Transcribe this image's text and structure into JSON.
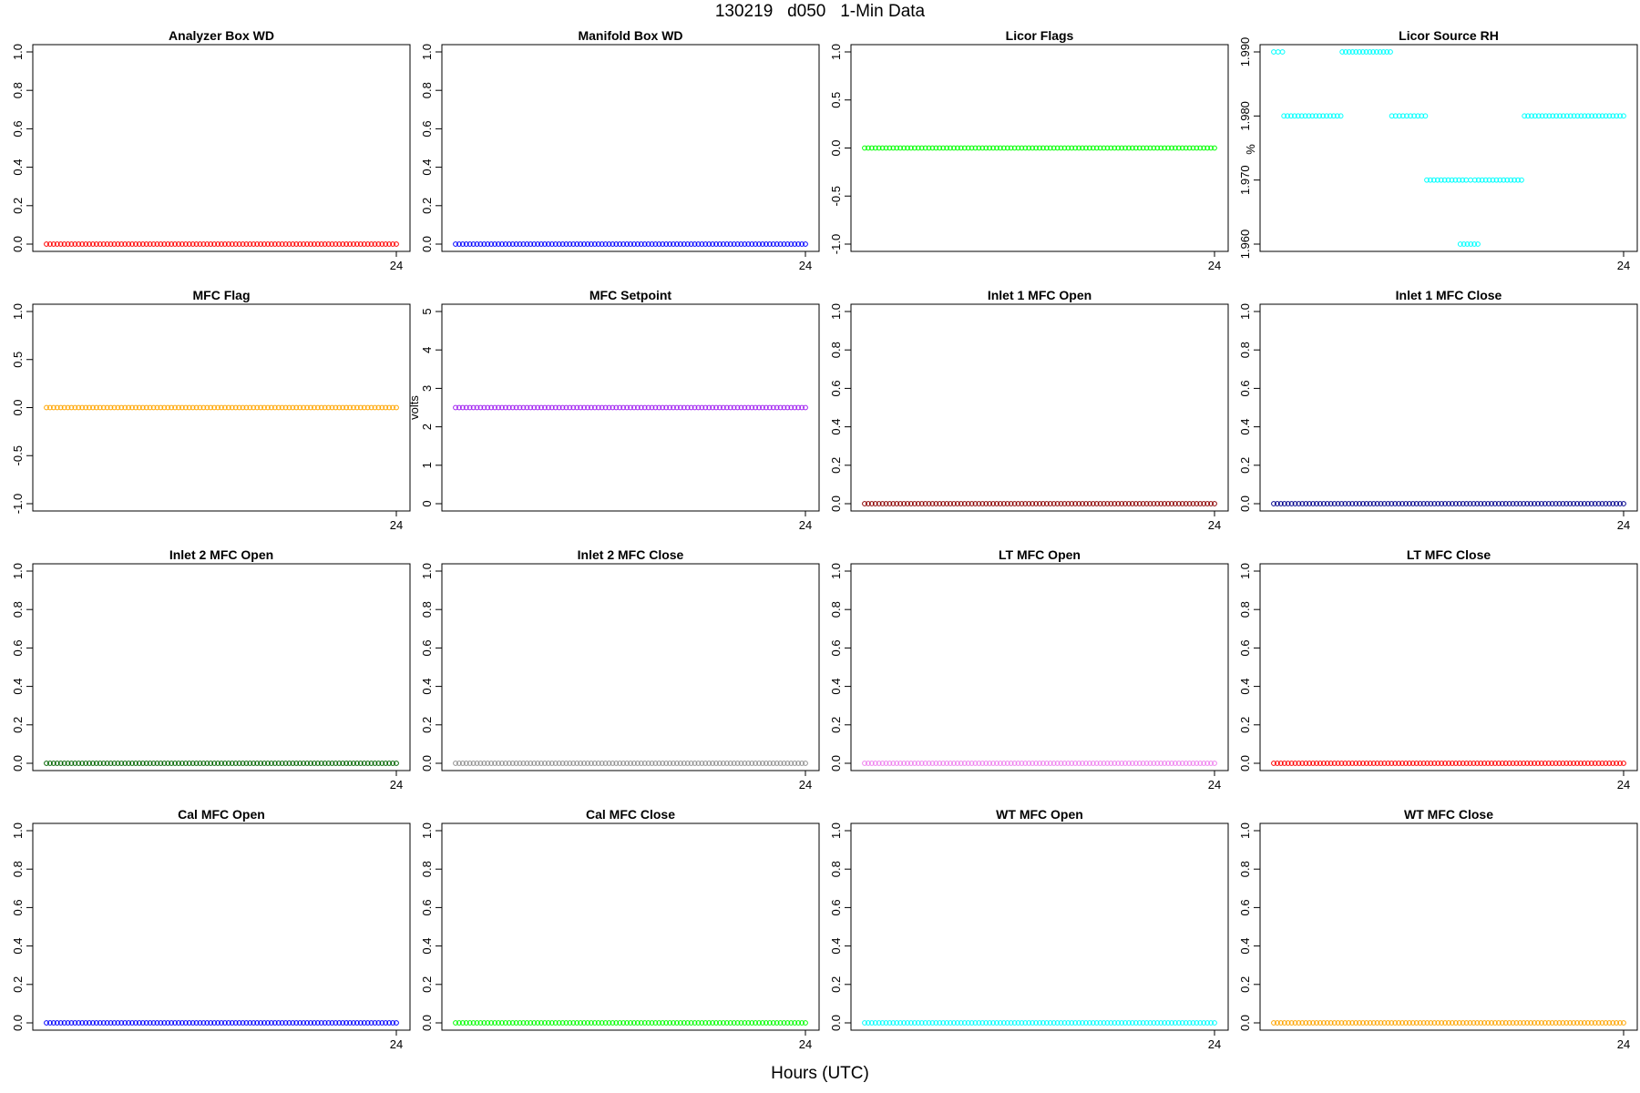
{
  "figure": {
    "title": "130219   d050   1-Min Data",
    "xlabel": "Hours (UTC)"
  },
  "chart_data": [
    {
      "type": "scatter",
      "title": "Analyzer Box WD",
      "ylabel": "",
      "color": "#ff0000",
      "ylim": [
        0,
        1
      ],
      "yticks": [
        "0.0",
        "0.2",
        "0.4",
        "0.6",
        "0.8",
        "1.0"
      ],
      "xticks": [
        "24"
      ],
      "x_range": [
        0,
        24
      ],
      "series": [
        {
          "segments": [
            {
              "y": 0,
              "x_start": 0,
              "x_end": 24
            }
          ]
        }
      ]
    },
    {
      "type": "scatter",
      "title": "Manifold Box WD",
      "ylabel": "",
      "color": "#0000ff",
      "ylim": [
        0,
        1
      ],
      "yticks": [
        "0.0",
        "0.2",
        "0.4",
        "0.6",
        "0.8",
        "1.0"
      ],
      "xticks": [
        "24"
      ],
      "x_range": [
        0,
        24
      ],
      "series": [
        {
          "segments": [
            {
              "y": 0,
              "x_start": 0,
              "x_end": 24
            }
          ]
        }
      ]
    },
    {
      "type": "scatter",
      "title": "Licor Flags",
      "ylabel": "",
      "color": "#00ff00",
      "ylim": [
        -1,
        1
      ],
      "yticks": [
        "-1.0",
        "-0.5",
        "0.0",
        "0.5",
        "1.0"
      ],
      "xticks": [
        "24"
      ],
      "x_range": [
        0,
        24
      ],
      "series": [
        {
          "segments": [
            {
              "y": 0,
              "x_start": 0,
              "x_end": 24
            }
          ]
        }
      ]
    },
    {
      "type": "scatter",
      "title": "Licor Source RH",
      "ylabel": "%",
      "color": "#00ffff",
      "ylim": [
        1.96,
        1.99
      ],
      "yticks": [
        "1.960",
        "1.970",
        "1.980",
        "1.990"
      ],
      "xticks": [
        "24"
      ],
      "x_range": [
        0,
        24
      ],
      "series": [
        {
          "segments": [
            {
              "y": 1.99,
              "x_start": 0,
              "x_end": 0.6
            },
            {
              "y": 1.98,
              "x_start": 0.7,
              "x_end": 4.6
            },
            {
              "y": 1.99,
              "x_start": 4.7,
              "x_end": 8.0
            },
            {
              "y": 1.98,
              "x_start": 8.1,
              "x_end": 10.4
            },
            {
              "y": 1.97,
              "x_start": 10.5,
              "x_end": 13.2
            },
            {
              "y": 1.97,
              "x_start": 13.5,
              "x_end": 13.5
            },
            {
              "y": 1.97,
              "x_start": 13.8,
              "x_end": 17.0
            },
            {
              "y": 1.96,
              "x_start": 12.8,
              "x_end": 14.0
            },
            {
              "y": 1.98,
              "x_start": 17.2,
              "x_end": 24
            }
          ]
        }
      ]
    },
    {
      "type": "scatter",
      "title": "MFC Flag",
      "ylabel": "",
      "color": "#ffa500",
      "ylim": [
        -1,
        1
      ],
      "yticks": [
        "-1.0",
        "-0.5",
        "0.0",
        "0.5",
        "1.0"
      ],
      "xticks": [
        "24"
      ],
      "x_range": [
        0,
        24
      ],
      "series": [
        {
          "segments": [
            {
              "y": 0,
              "x_start": 0,
              "x_end": 24
            }
          ]
        }
      ]
    },
    {
      "type": "scatter",
      "title": "MFC Setpoint",
      "ylabel": "volts",
      "color": "#a020f0",
      "ylim": [
        0,
        5
      ],
      "yticks": [
        "0",
        "1",
        "2",
        "3",
        "4",
        "5"
      ],
      "xticks": [
        "24"
      ],
      "x_range": [
        0,
        24
      ],
      "series": [
        {
          "segments": [
            {
              "y": 2.5,
              "x_start": 0,
              "x_end": 24
            }
          ]
        }
      ]
    },
    {
      "type": "scatter",
      "title": "Inlet 1 MFC Open",
      "ylabel": "",
      "color": "#8b0000",
      "ylim": [
        0,
        1
      ],
      "yticks": [
        "0.0",
        "0.2",
        "0.4",
        "0.6",
        "0.8",
        "1.0"
      ],
      "xticks": [
        "24"
      ],
      "x_range": [
        0,
        24
      ],
      "series": [
        {
          "segments": [
            {
              "y": 0,
              "x_start": 0,
              "x_end": 24
            }
          ]
        }
      ]
    },
    {
      "type": "scatter",
      "title": "Inlet 1 MFC Close",
      "ylabel": "",
      "color": "#00008b",
      "ylim": [
        0,
        1
      ],
      "yticks": [
        "0.0",
        "0.2",
        "0.4",
        "0.6",
        "0.8",
        "1.0"
      ],
      "xticks": [
        "24"
      ],
      "x_range": [
        0,
        24
      ],
      "series": [
        {
          "segments": [
            {
              "y": 0,
              "x_start": 0,
              "x_end": 24
            }
          ]
        }
      ]
    },
    {
      "type": "scatter",
      "title": "Inlet 2 MFC Open",
      "ylabel": "",
      "color": "#006400",
      "ylim": [
        0,
        1
      ],
      "yticks": [
        "0.0",
        "0.2",
        "0.4",
        "0.6",
        "0.8",
        "1.0"
      ],
      "xticks": [
        "24"
      ],
      "x_range": [
        0,
        24
      ],
      "series": [
        {
          "segments": [
            {
              "y": 0,
              "x_start": 0,
              "x_end": 24
            }
          ]
        }
      ]
    },
    {
      "type": "scatter",
      "title": "Inlet 2 MFC Close",
      "ylabel": "",
      "color": "#909090",
      "ylim": [
        0,
        1
      ],
      "yticks": [
        "0.0",
        "0.2",
        "0.4",
        "0.6",
        "0.8",
        "1.0"
      ],
      "xticks": [
        "24"
      ],
      "x_range": [
        0,
        24
      ],
      "series": [
        {
          "segments": [
            {
              "y": 0,
              "x_start": 0,
              "x_end": 24
            }
          ]
        }
      ]
    },
    {
      "type": "scatter",
      "title": "LT MFC Open",
      "ylabel": "",
      "color": "#ee82ee",
      "ylim": [
        0,
        1
      ],
      "yticks": [
        "0.0",
        "0.2",
        "0.4",
        "0.6",
        "0.8",
        "1.0"
      ],
      "xticks": [
        "24"
      ],
      "x_range": [
        0,
        24
      ],
      "series": [
        {
          "segments": [
            {
              "y": 0,
              "x_start": 0,
              "x_end": 24
            }
          ]
        }
      ]
    },
    {
      "type": "scatter",
      "title": "LT MFC Close",
      "ylabel": "",
      "color": "#ff0000",
      "ylim": [
        0,
        1
      ],
      "yticks": [
        "0.0",
        "0.2",
        "0.4",
        "0.6",
        "0.8",
        "1.0"
      ],
      "xticks": [
        "24"
      ],
      "x_range": [
        0,
        24
      ],
      "series": [
        {
          "segments": [
            {
              "y": 0,
              "x_start": 0,
              "x_end": 24
            }
          ]
        }
      ]
    },
    {
      "type": "scatter",
      "title": "Cal MFC Open",
      "ylabel": "",
      "color": "#0000ff",
      "ylim": [
        0,
        1
      ],
      "yticks": [
        "0.0",
        "0.2",
        "0.4",
        "0.6",
        "0.8",
        "1.0"
      ],
      "xticks": [
        "24"
      ],
      "x_range": [
        0,
        24
      ],
      "series": [
        {
          "segments": [
            {
              "y": 0,
              "x_start": 0,
              "x_end": 24
            }
          ]
        }
      ]
    },
    {
      "type": "scatter",
      "title": "Cal MFC Close",
      "ylabel": "",
      "color": "#00ff00",
      "ylim": [
        0,
        1
      ],
      "yticks": [
        "0.0",
        "0.2",
        "0.4",
        "0.6",
        "0.8",
        "1.0"
      ],
      "xticks": [
        "24"
      ],
      "x_range": [
        0,
        24
      ],
      "series": [
        {
          "segments": [
            {
              "y": 0,
              "x_start": 0,
              "x_end": 24
            }
          ]
        }
      ]
    },
    {
      "type": "scatter",
      "title": "WT MFC Open",
      "ylabel": "",
      "color": "#00ffff",
      "ylim": [
        0,
        1
      ],
      "yticks": [
        "0.0",
        "0.2",
        "0.4",
        "0.6",
        "0.8",
        "1.0"
      ],
      "xticks": [
        "24"
      ],
      "x_range": [
        0,
        24
      ],
      "series": [
        {
          "segments": [
            {
              "y": 0,
              "x_start": 0,
              "x_end": 24
            }
          ]
        }
      ]
    },
    {
      "type": "scatter",
      "title": "WT MFC Close",
      "ylabel": "",
      "color": "#ffa500",
      "ylim": [
        0,
        1
      ],
      "yticks": [
        "0.0",
        "0.2",
        "0.4",
        "0.6",
        "0.8",
        "1.0"
      ],
      "xticks": [
        "24"
      ],
      "x_range": [
        0,
        24
      ],
      "series": [
        {
          "segments": [
            {
              "y": 0,
              "x_start": 0,
              "x_end": 24
            }
          ]
        }
      ]
    }
  ]
}
